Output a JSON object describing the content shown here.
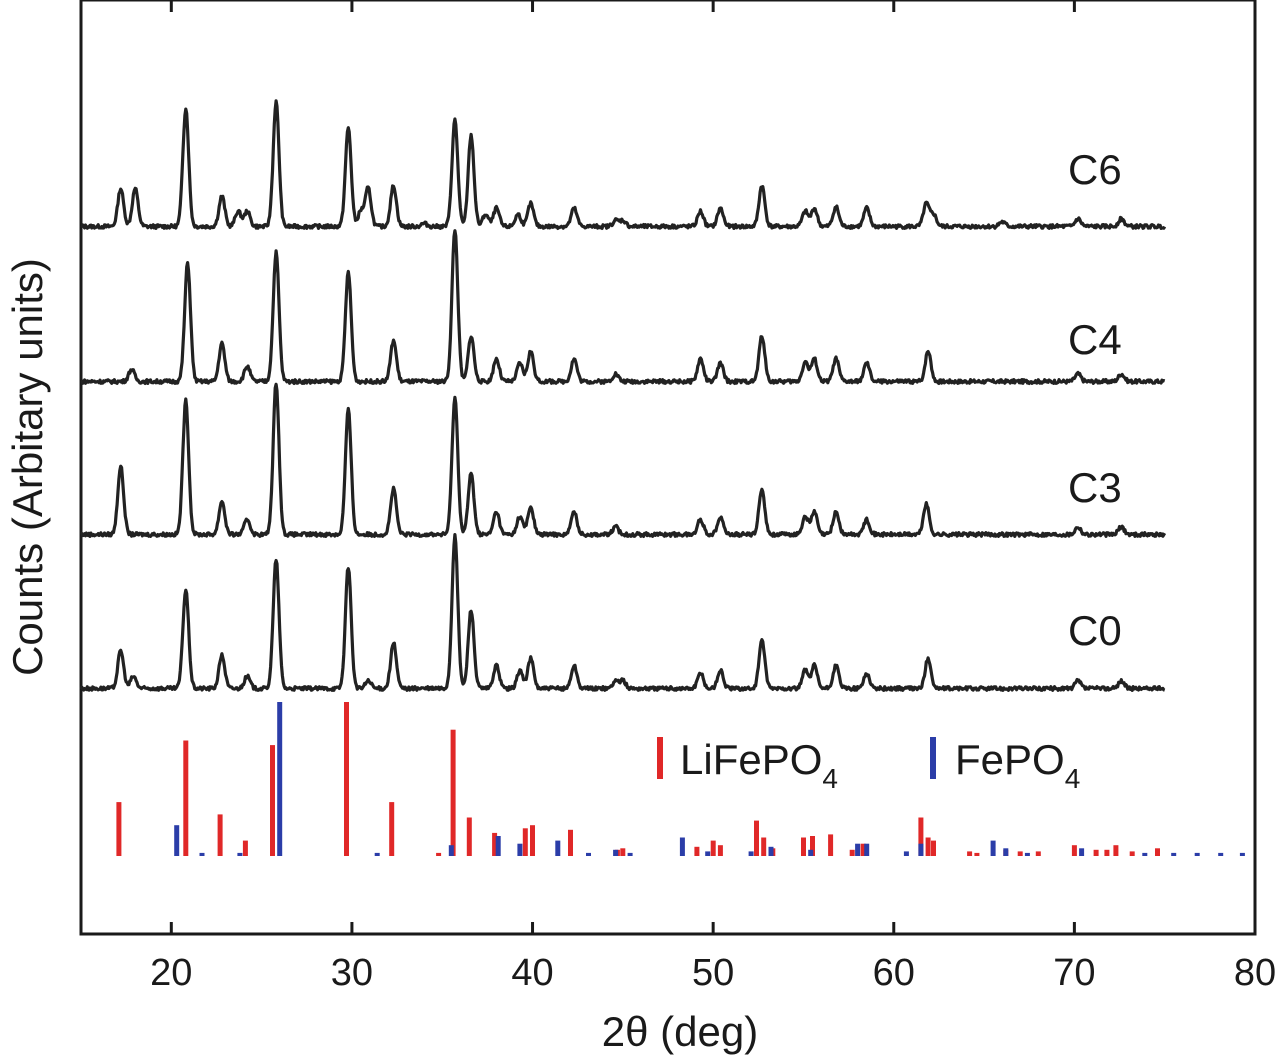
{
  "chart_data": {
    "type": "line",
    "xlabel": "2θ (deg)",
    "ylabel": "Counts (Arbitary units)",
    "xlim": [
      15,
      80
    ],
    "xticks": [
      20,
      30,
      40,
      50,
      60,
      70,
      80
    ],
    "xtick_labels": [
      "20",
      "30",
      "40",
      "50",
      "60",
      "70",
      "80"
    ],
    "yticks": "none",
    "grid": false,
    "x_range_of_patterns": [
      15,
      75
    ],
    "series": [
      {
        "name": "C6",
        "color": "#222222",
        "peaks": [
          [
            17.2,
            0.25
          ],
          [
            18.0,
            0.25
          ],
          [
            20.8,
            0.78
          ],
          [
            22.8,
            0.2
          ],
          [
            23.7,
            0.1
          ],
          [
            24.2,
            0.1
          ],
          [
            25.8,
            0.82
          ],
          [
            29.8,
            0.65
          ],
          [
            30.5,
            0.1
          ],
          [
            30.9,
            0.25
          ],
          [
            32.3,
            0.27
          ],
          [
            34.0,
            0.02
          ],
          [
            35.7,
            0.7
          ],
          [
            36.6,
            0.6
          ],
          [
            37.4,
            0.08
          ],
          [
            38.0,
            0.12
          ],
          [
            39.2,
            0.08
          ],
          [
            39.9,
            0.15
          ],
          [
            42.3,
            0.12
          ],
          [
            44.6,
            0.04
          ],
          [
            45.0,
            0.04
          ],
          [
            49.3,
            0.1
          ],
          [
            50.4,
            0.12
          ],
          [
            52.7,
            0.27
          ],
          [
            55.1,
            0.1
          ],
          [
            55.6,
            0.12
          ],
          [
            56.8,
            0.13
          ],
          [
            58.5,
            0.12
          ],
          [
            61.8,
            0.15
          ],
          [
            62.2,
            0.08
          ],
          [
            66.0,
            0.03
          ],
          [
            70.2,
            0.05
          ],
          [
            72.6,
            0.05
          ]
        ]
      },
      {
        "name": "C4",
        "color": "#222222",
        "peaks": [
          [
            17.8,
            0.08
          ],
          [
            20.9,
            0.78
          ],
          [
            22.8,
            0.25
          ],
          [
            24.2,
            0.1
          ],
          [
            25.8,
            0.85
          ],
          [
            29.8,
            0.72
          ],
          [
            32.3,
            0.27
          ],
          [
            35.7,
            1.0
          ],
          [
            36.6,
            0.3
          ],
          [
            38.0,
            0.15
          ],
          [
            39.3,
            0.12
          ],
          [
            39.9,
            0.2
          ],
          [
            42.3,
            0.15
          ],
          [
            44.6,
            0.05
          ],
          [
            49.3,
            0.15
          ],
          [
            50.4,
            0.12
          ],
          [
            52.7,
            0.3
          ],
          [
            55.1,
            0.13
          ],
          [
            55.6,
            0.15
          ],
          [
            56.8,
            0.15
          ],
          [
            58.5,
            0.12
          ],
          [
            61.9,
            0.2
          ],
          [
            70.2,
            0.05
          ],
          [
            72.6,
            0.05
          ]
        ]
      },
      {
        "name": "C3",
        "color": "#222222",
        "peaks": [
          [
            17.2,
            0.45
          ],
          [
            20.8,
            0.88
          ],
          [
            22.8,
            0.22
          ],
          [
            24.2,
            0.1
          ],
          [
            25.8,
            1.0
          ],
          [
            29.8,
            0.82
          ],
          [
            32.3,
            0.3
          ],
          [
            35.7,
            0.9
          ],
          [
            36.6,
            0.4
          ],
          [
            38.0,
            0.15
          ],
          [
            39.3,
            0.12
          ],
          [
            39.9,
            0.18
          ],
          [
            42.3,
            0.15
          ],
          [
            44.6,
            0.05
          ],
          [
            49.3,
            0.1
          ],
          [
            50.4,
            0.12
          ],
          [
            52.7,
            0.3
          ],
          [
            55.1,
            0.12
          ],
          [
            55.6,
            0.15
          ],
          [
            56.8,
            0.15
          ],
          [
            58.5,
            0.1
          ],
          [
            61.8,
            0.2
          ],
          [
            70.2,
            0.05
          ],
          [
            72.6,
            0.05
          ]
        ]
      },
      {
        "name": "C0",
        "color": "#222222",
        "peaks": [
          [
            17.2,
            0.25
          ],
          [
            17.9,
            0.08
          ],
          [
            20.8,
            0.65
          ],
          [
            22.8,
            0.22
          ],
          [
            24.2,
            0.08
          ],
          [
            25.8,
            0.85
          ],
          [
            29.8,
            0.8
          ],
          [
            30.9,
            0.05
          ],
          [
            32.3,
            0.3
          ],
          [
            35.7,
            1.0
          ],
          [
            36.6,
            0.52
          ],
          [
            38.0,
            0.15
          ],
          [
            39.3,
            0.12
          ],
          [
            39.9,
            0.2
          ],
          [
            42.3,
            0.15
          ],
          [
            44.6,
            0.05
          ],
          [
            45.0,
            0.05
          ],
          [
            49.3,
            0.1
          ],
          [
            50.4,
            0.12
          ],
          [
            52.7,
            0.32
          ],
          [
            55.1,
            0.12
          ],
          [
            55.6,
            0.15
          ],
          [
            56.8,
            0.15
          ],
          [
            58.5,
            0.1
          ],
          [
            61.9,
            0.2
          ],
          [
            70.2,
            0.05
          ],
          [
            72.6,
            0.05
          ]
        ]
      }
    ],
    "reference_patterns": [
      {
        "name": "LiFePO4",
        "color": "#e02828",
        "lines": [
          [
            17.1,
            0.35
          ],
          [
            20.8,
            0.75
          ],
          [
            22.7,
            0.27
          ],
          [
            24.1,
            0.1
          ],
          [
            25.6,
            0.72
          ],
          [
            29.7,
            1.0
          ],
          [
            32.2,
            0.35
          ],
          [
            34.8,
            0.02
          ],
          [
            35.6,
            0.82
          ],
          [
            36.5,
            0.25
          ],
          [
            37.9,
            0.15
          ],
          [
            39.6,
            0.18
          ],
          [
            40.0,
            0.2
          ],
          [
            42.1,
            0.17
          ],
          [
            44.7,
            0.04
          ],
          [
            45.0,
            0.05
          ],
          [
            49.1,
            0.06
          ],
          [
            50.0,
            0.1
          ],
          [
            50.4,
            0.07
          ],
          [
            52.4,
            0.23
          ],
          [
            52.8,
            0.12
          ],
          [
            53.3,
            0.05
          ],
          [
            55.0,
            0.12
          ],
          [
            55.5,
            0.13
          ],
          [
            56.5,
            0.14
          ],
          [
            57.7,
            0.04
          ],
          [
            58.3,
            0.08
          ],
          [
            61.5,
            0.25
          ],
          [
            61.9,
            0.12
          ],
          [
            62.2,
            0.1
          ],
          [
            64.2,
            0.03
          ],
          [
            64.6,
            0.02
          ],
          [
            66.2,
            0.04
          ],
          [
            67.0,
            0.03
          ],
          [
            68.0,
            0.03
          ],
          [
            70.0,
            0.07
          ],
          [
            71.2,
            0.04
          ],
          [
            71.8,
            0.04
          ],
          [
            72.3,
            0.07
          ],
          [
            73.2,
            0.03
          ],
          [
            74.6,
            0.05
          ]
        ]
      },
      {
        "name": "FePO4",
        "color": "#2b3da8",
        "lines": [
          [
            20.3,
            0.2
          ],
          [
            21.7,
            0.02
          ],
          [
            23.8,
            0.02
          ],
          [
            26.0,
            1.0
          ],
          [
            31.4,
            0.02
          ],
          [
            35.5,
            0.07
          ],
          [
            38.1,
            0.13
          ],
          [
            39.3,
            0.08
          ],
          [
            41.4,
            0.1
          ],
          [
            43.1,
            0.02
          ],
          [
            44.6,
            0.04
          ],
          [
            45.4,
            0.02
          ],
          [
            48.3,
            0.12
          ],
          [
            49.7,
            0.03
          ],
          [
            52.1,
            0.03
          ],
          [
            53.2,
            0.06
          ],
          [
            55.4,
            0.04
          ],
          [
            58.0,
            0.08
          ],
          [
            58.5,
            0.08
          ],
          [
            60.7,
            0.03
          ],
          [
            61.5,
            0.08
          ],
          [
            65.5,
            0.1
          ],
          [
            66.2,
            0.05
          ],
          [
            67.4,
            0.02
          ],
          [
            70.4,
            0.05
          ],
          [
            73.9,
            0.02
          ],
          [
            75.5,
            0.02
          ],
          [
            76.8,
            0.02
          ],
          [
            78.1,
            0.02
          ],
          [
            79.3,
            0.02
          ]
        ]
      }
    ],
    "legend": {
      "placement": "upper-right of reference panel",
      "entries": [
        {
          "label": "LiFePO",
          "subscript": "4",
          "color": "#e02828"
        },
        {
          "label": "FePO",
          "subscript": "4",
          "color": "#2b3da8"
        }
      ]
    }
  }
}
